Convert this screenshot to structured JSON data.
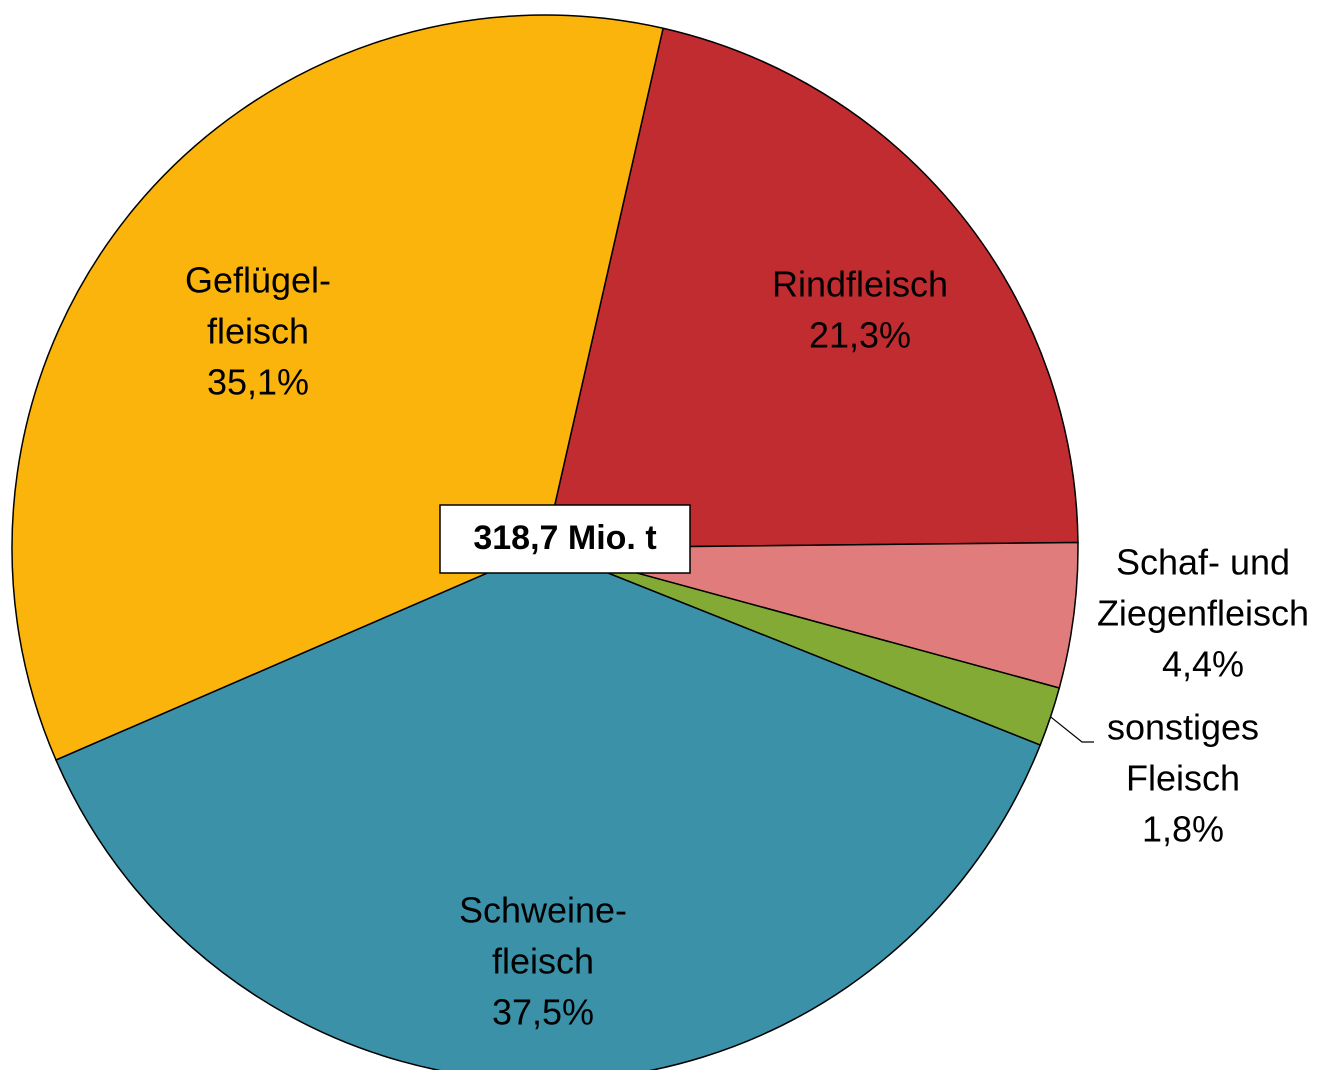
{
  "chart_data": {
    "type": "pie",
    "categories": [
      [
        "Rindfleisch"
      ],
      [
        "Schaf- und",
        "Ziegenfleisch"
      ],
      [
        "sonstiges",
        "Fleisch"
      ],
      [
        "Schweine-",
        "fleisch"
      ],
      [
        "Geflügel-",
        "fleisch"
      ]
    ],
    "values": [
      21.3,
      4.4,
      1.8,
      37.5,
      35.1
    ],
    "value_labels": [
      "21,3%",
      "4,4%",
      "1,8%",
      "37,5%",
      "35,1%"
    ],
    "colors": [
      "#c12c30",
      "#e07c7c",
      "#84aa36",
      "#3a91a8",
      "#fbb40b"
    ],
    "total_label": "318,7 Mio. t"
  }
}
